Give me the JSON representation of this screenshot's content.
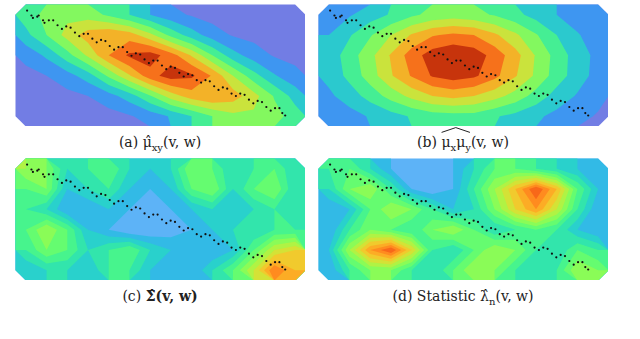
{
  "chart_data": {
    "type": "contour",
    "xlim": [
      0,
      1
    ],
    "ylim": [
      0,
      1
    ],
    "tick_labels": false,
    "color": "turbo",
    "color_range": [
      0,
      1
    ],
    "points": {
      "x": [
        0.04,
        0.06,
        0.08,
        0.1,
        0.13,
        0.16,
        0.19,
        0.22,
        0.25,
        0.28,
        0.31,
        0.34,
        0.37,
        0.4,
        0.43,
        0.46,
        0.49,
        0.52,
        0.55,
        0.58,
        0.61,
        0.64,
        0.67,
        0.7,
        0.73,
        0.76,
        0.79,
        0.82,
        0.85,
        0.88,
        0.91,
        0.93,
        0.055,
        0.075,
        0.095,
        0.115,
        0.145,
        0.175,
        0.205,
        0.235,
        0.265,
        0.295,
        0.325,
        0.355,
        0.385,
        0.415,
        0.445,
        0.475,
        0.505,
        0.535,
        0.565,
        0.595,
        0.625,
        0.655,
        0.685,
        0.715,
        0.745,
        0.775,
        0.805,
        0.835,
        0.865,
        0.895,
        0.92
      ],
      "y": [
        0.05,
        0.11,
        0.09,
        0.15,
        0.13,
        0.2,
        0.19,
        0.26,
        0.24,
        0.31,
        0.3,
        0.37,
        0.35,
        0.42,
        0.41,
        0.48,
        0.46,
        0.53,
        0.52,
        0.59,
        0.58,
        0.64,
        0.63,
        0.7,
        0.69,
        0.75,
        0.74,
        0.81,
        0.8,
        0.87,
        0.85,
        0.91,
        0.09,
        0.1,
        0.13,
        0.13,
        0.17,
        0.18,
        0.23,
        0.24,
        0.28,
        0.29,
        0.34,
        0.35,
        0.39,
        0.4,
        0.45,
        0.46,
        0.5,
        0.51,
        0.56,
        0.57,
        0.62,
        0.62,
        0.67,
        0.68,
        0.73,
        0.73,
        0.78,
        0.79,
        0.84,
        0.85,
        0.89
      ]
    },
    "panels": [
      {
        "caption": [
          {
            "text": "(a) "
          },
          {
            "text": "μ̂"
          },
          {
            "text": "xy",
            "sub": true
          },
          {
            "text": "(v, w)"
          }
        ],
        "cells": [
          [
            0.45,
            0.53,
            0.57,
            0.55,
            0.48,
            0.4,
            0.3,
            0.23,
            0.19,
            0.16,
            0.16,
            0.15,
            0.15,
            0.15
          ],
          [
            0.37,
            0.5,
            0.64,
            0.75,
            0.79,
            0.75,
            0.63,
            0.47,
            0.35,
            0.25,
            0.19,
            0.17,
            0.15,
            0.15
          ],
          [
            0.23,
            0.32,
            0.46,
            0.62,
            0.8,
            0.92,
            0.95,
            0.85,
            0.69,
            0.5,
            0.34,
            0.25,
            0.19,
            0.17
          ],
          [
            0.17,
            0.2,
            0.26,
            0.35,
            0.52,
            0.69,
            0.86,
            0.95,
            0.92,
            0.79,
            0.6,
            0.44,
            0.31,
            0.23
          ],
          [
            0.15,
            0.16,
            0.17,
            0.2,
            0.26,
            0.35,
            0.49,
            0.65,
            0.75,
            0.8,
            0.75,
            0.64,
            0.49,
            0.36
          ],
          [
            0.15,
            0.15,
            0.15,
            0.16,
            0.16,
            0.19,
            0.24,
            0.31,
            0.4,
            0.5,
            0.57,
            0.58,
            0.54,
            0.45
          ]
        ]
      },
      {
        "caption": [
          {
            "text": "(b) "
          },
          {
            "wide_hat": [
              {
                "text": "μ"
              },
              {
                "text": "x",
                "sub": true
              },
              {
                "text": "μ"
              },
              {
                "text": "y",
                "sub": true
              }
            ]
          },
          {
            "text": "(v, w)"
          }
        ],
        "cells": [
          [
            0.24,
            0.29,
            0.35,
            0.41,
            0.48,
            0.53,
            0.55,
            0.53,
            0.49,
            0.43,
            0.36,
            0.3,
            0.24,
            0.21
          ],
          [
            0.3,
            0.39,
            0.49,
            0.6,
            0.71,
            0.79,
            0.82,
            0.8,
            0.72,
            0.62,
            0.51,
            0.4,
            0.31,
            0.24
          ],
          [
            0.34,
            0.45,
            0.57,
            0.71,
            0.85,
            0.95,
            0.99,
            0.96,
            0.86,
            0.74,
            0.59,
            0.46,
            0.35,
            0.27
          ],
          [
            0.33,
            0.43,
            0.55,
            0.69,
            0.81,
            0.91,
            0.95,
            0.92,
            0.83,
            0.71,
            0.58,
            0.45,
            0.35,
            0.26
          ],
          [
            0.28,
            0.35,
            0.44,
            0.54,
            0.63,
            0.7,
            0.73,
            0.7,
            0.64,
            0.56,
            0.46,
            0.36,
            0.29,
            0.23
          ],
          [
            0.22,
            0.26,
            0.31,
            0.36,
            0.41,
            0.45,
            0.46,
            0.46,
            0.41,
            0.37,
            0.32,
            0.27,
            0.23,
            0.19
          ]
        ]
      },
      {
        "caption": [
          {
            "text": "(c) "
          },
          {
            "text": "Σ̂",
            "bold": true
          },
          {
            "text": "(v, w)",
            "bold": true
          }
        ],
        "cells": [
          [
            0.55,
            0.5,
            0.35,
            0.4,
            0.45,
            0.35,
            0.3,
            0.35,
            0.5,
            0.45,
            0.35,
            0.4,
            0.45,
            0.35
          ],
          [
            0.45,
            0.5,
            0.3,
            0.35,
            0.4,
            0.3,
            0.25,
            0.3,
            0.45,
            0.5,
            0.35,
            0.45,
            0.5,
            0.35
          ],
          [
            0.4,
            0.35,
            0.25,
            0.25,
            0.3,
            0.25,
            0.2,
            0.25,
            0.3,
            0.35,
            0.3,
            0.35,
            0.4,
            0.35
          ],
          [
            0.45,
            0.55,
            0.45,
            0.3,
            0.25,
            0.2,
            0.2,
            0.22,
            0.25,
            0.3,
            0.35,
            0.35,
            0.4,
            0.4
          ],
          [
            0.4,
            0.5,
            0.45,
            0.35,
            0.4,
            0.45,
            0.35,
            0.3,
            0.3,
            0.25,
            0.3,
            0.45,
            0.6,
            0.65
          ],
          [
            0.3,
            0.35,
            0.35,
            0.3,
            0.4,
            0.4,
            0.3,
            0.25,
            0.25,
            0.35,
            0.45,
            0.6,
            0.8,
            0.7
          ]
        ]
      },
      {
        "caption": [
          {
            "text": "(d) Statistic "
          },
          {
            "text": "λ̂"
          },
          {
            "text": "n",
            "sub": true
          },
          {
            "text": "(v, w)"
          }
        ],
        "cells": [
          [
            0.4,
            0.45,
            0.35,
            0.25,
            0.2,
            0.2,
            0.25,
            0.35,
            0.45,
            0.45,
            0.4,
            0.35,
            0.3,
            0.25
          ],
          [
            0.35,
            0.5,
            0.55,
            0.4,
            0.25,
            0.2,
            0.25,
            0.4,
            0.55,
            0.7,
            0.85,
            0.7,
            0.45,
            0.3
          ],
          [
            0.25,
            0.3,
            0.45,
            0.55,
            0.5,
            0.4,
            0.3,
            0.35,
            0.5,
            0.65,
            0.75,
            0.6,
            0.4,
            0.25
          ],
          [
            0.25,
            0.4,
            0.5,
            0.45,
            0.4,
            0.5,
            0.55,
            0.45,
            0.35,
            0.4,
            0.45,
            0.4,
            0.3,
            0.25
          ],
          [
            0.3,
            0.55,
            0.75,
            0.85,
            0.65,
            0.4,
            0.35,
            0.45,
            0.55,
            0.5,
            0.4,
            0.35,
            0.45,
            0.4
          ],
          [
            0.25,
            0.4,
            0.5,
            0.5,
            0.4,
            0.35,
            0.45,
            0.55,
            0.5,
            0.4,
            0.35,
            0.4,
            0.55,
            0.5
          ]
        ]
      }
    ]
  }
}
